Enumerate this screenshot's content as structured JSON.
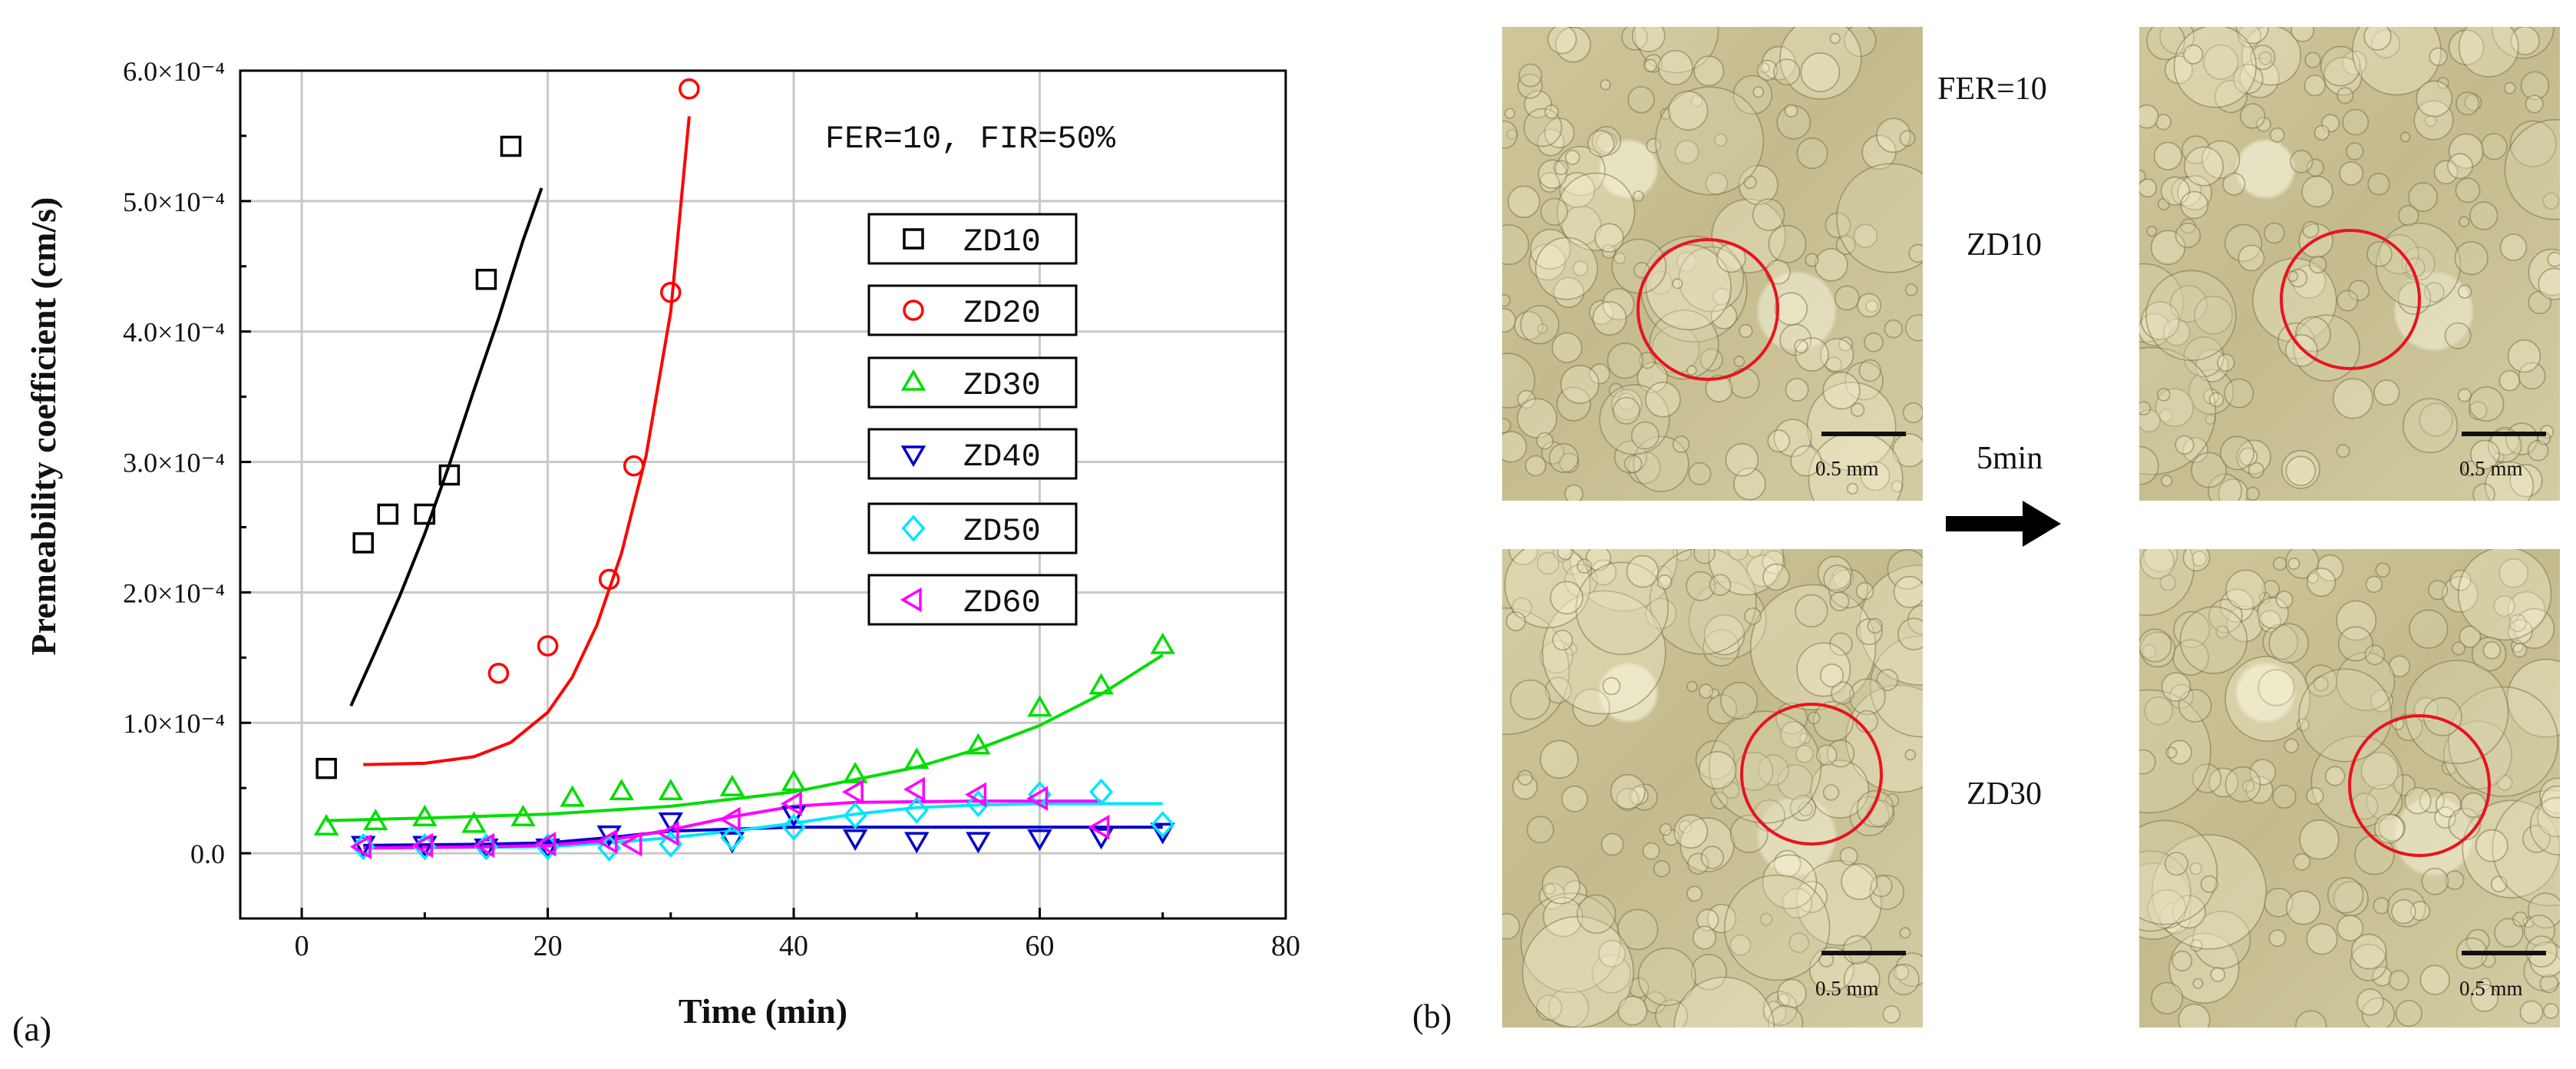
{
  "chart_data": {
    "type": "scatter",
    "title": "",
    "annotation": "FER=10,  FIR=50%",
    "xlabel": "Time (min)",
    "ylabel": "Premeability coefficient  (cm/s)",
    "xlim": [
      -5,
      80
    ],
    "ylim": [
      -0.5,
      6.0
    ],
    "y_scale_note": "×10^-4",
    "x_ticks": [
      0,
      20,
      40,
      60,
      80
    ],
    "y_ticks": [
      0.0,
      1.0,
      2.0,
      3.0,
      4.0,
      5.0,
      6.0
    ],
    "x_tick_labels": [
      "0",
      "20",
      "40",
      "60",
      "80"
    ],
    "y_tick_labels": [
      "0.0",
      "1.0×10⁻⁴",
      "2.0×10⁻⁴",
      "3.0×10⁻⁴",
      "4.0×10⁻⁴",
      "5.0×10⁻⁴",
      "6.0×10⁻⁴"
    ],
    "grid": true,
    "legend_position": "upper-right",
    "series": [
      {
        "name": "ZD10",
        "color": "#000000",
        "marker": "square",
        "points": [
          [
            2,
            0.65
          ],
          [
            5,
            2.38
          ],
          [
            7,
            2.6
          ],
          [
            10,
            2.6
          ],
          [
            12,
            2.9
          ],
          [
            15,
            4.4
          ],
          [
            17,
            5.42
          ]
        ],
        "fit": [
          [
            4,
            1.13
          ],
          [
            6,
            1.55
          ],
          [
            8,
            1.98
          ],
          [
            10,
            2.45
          ],
          [
            12,
            2.98
          ],
          [
            14,
            3.55
          ],
          [
            16,
            4.1
          ],
          [
            18,
            4.7
          ],
          [
            19.5,
            5.1
          ]
        ]
      },
      {
        "name": "ZD20",
        "color": "#ff0000",
        "marker": "circle",
        "points": [
          [
            16,
            1.38
          ],
          [
            20,
            1.59
          ],
          [
            25,
            2.1
          ],
          [
            27,
            2.97
          ],
          [
            30,
            4.3
          ],
          [
            31.5,
            5.86
          ]
        ],
        "fit": [
          [
            5,
            0.68
          ],
          [
            10,
            0.69
          ],
          [
            14,
            0.74
          ],
          [
            17,
            0.85
          ],
          [
            20,
            1.08
          ],
          [
            22,
            1.35
          ],
          [
            24,
            1.75
          ],
          [
            26,
            2.3
          ],
          [
            28,
            3.05
          ],
          [
            30,
            4.15
          ],
          [
            31.5,
            5.65
          ]
        ]
      },
      {
        "name": "ZD30",
        "color": "#00dd00",
        "marker": "triangle-up",
        "points": [
          [
            2,
            0.2
          ],
          [
            6,
            0.24
          ],
          [
            10,
            0.27
          ],
          [
            14,
            0.22
          ],
          [
            18,
            0.27
          ],
          [
            22,
            0.42
          ],
          [
            26,
            0.47
          ],
          [
            30,
            0.47
          ],
          [
            35,
            0.5
          ],
          [
            40,
            0.54
          ],
          [
            45,
            0.6
          ],
          [
            50,
            0.71
          ],
          [
            55,
            0.82
          ],
          [
            60,
            1.11
          ],
          [
            65,
            1.28
          ],
          [
            70,
            1.59
          ]
        ],
        "fit": [
          [
            2,
            0.25
          ],
          [
            10,
            0.27
          ],
          [
            20,
            0.3
          ],
          [
            30,
            0.36
          ],
          [
            40,
            0.47
          ],
          [
            50,
            0.66
          ],
          [
            55,
            0.8
          ],
          [
            60,
            0.98
          ],
          [
            65,
            1.22
          ],
          [
            70,
            1.52
          ]
        ]
      },
      {
        "name": "ZD40",
        "color": "#0000cc",
        "marker": "triangle-down",
        "points": [
          [
            5,
            0.07
          ],
          [
            10,
            0.07
          ],
          [
            15,
            0.05
          ],
          [
            20,
            0.05
          ],
          [
            25,
            0.15
          ],
          [
            30,
            0.25
          ],
          [
            35,
            0.1
          ],
          [
            40,
            0.3
          ],
          [
            45,
            0.12
          ],
          [
            50,
            0.1
          ],
          [
            55,
            0.1
          ],
          [
            60,
            0.12
          ],
          [
            65,
            0.13
          ],
          [
            70,
            0.17
          ]
        ],
        "fit": [
          [
            5,
            0.06
          ],
          [
            15,
            0.07
          ],
          [
            20,
            0.08
          ],
          [
            25,
            0.12
          ],
          [
            30,
            0.17
          ],
          [
            40,
            0.2
          ],
          [
            50,
            0.2
          ],
          [
            60,
            0.2
          ],
          [
            70,
            0.2
          ]
        ]
      },
      {
        "name": "ZD50",
        "color": "#00e5ff",
        "marker": "diamond",
        "points": [
          [
            5,
            0.05
          ],
          [
            10,
            0.05
          ],
          [
            15,
            0.05
          ],
          [
            20,
            0.05
          ],
          [
            25,
            0.04
          ],
          [
            30,
            0.07
          ],
          [
            35,
            0.12
          ],
          [
            40,
            0.2
          ],
          [
            45,
            0.29
          ],
          [
            50,
            0.33
          ],
          [
            55,
            0.38
          ],
          [
            60,
            0.45
          ],
          [
            65,
            0.47
          ],
          [
            70,
            0.22
          ]
        ],
        "fit": [
          [
            5,
            0.04
          ],
          [
            20,
            0.05
          ],
          [
            25,
            0.08
          ],
          [
            30,
            0.12
          ],
          [
            35,
            0.17
          ],
          [
            40,
            0.23
          ],
          [
            45,
            0.3
          ],
          [
            50,
            0.35
          ],
          [
            55,
            0.37
          ],
          [
            60,
            0.38
          ],
          [
            70,
            0.38
          ]
        ]
      },
      {
        "name": "ZD60",
        "color": "#ff00ff",
        "marker": "triangle-left",
        "points": [
          [
            5,
            0.05
          ],
          [
            10,
            0.06
          ],
          [
            15,
            0.06
          ],
          [
            20,
            0.07
          ],
          [
            25,
            0.09
          ],
          [
            27,
            0.07
          ],
          [
            30,
            0.15
          ],
          [
            35,
            0.26
          ],
          [
            40,
            0.38
          ],
          [
            45,
            0.47
          ],
          [
            50,
            0.49
          ],
          [
            55,
            0.45
          ],
          [
            60,
            0.42
          ],
          [
            65,
            0.2
          ]
        ],
        "fit": [
          [
            5,
            0.04
          ],
          [
            15,
            0.05
          ],
          [
            20,
            0.06
          ],
          [
            25,
            0.1
          ],
          [
            30,
            0.18
          ],
          [
            35,
            0.28
          ],
          [
            40,
            0.36
          ],
          [
            45,
            0.39
          ],
          [
            55,
            0.4
          ],
          [
            65,
            0.4
          ]
        ]
      }
    ]
  },
  "panel_a_label": "(a)",
  "panel_b": {
    "label": "(b)",
    "top_text": "FER=10",
    "row1_label": "ZD10",
    "time_label": "5min",
    "row2_label": "ZD30",
    "scale_text": "0.5 mm",
    "circle_color": "#e8141e",
    "arrow_color": "#000000"
  }
}
